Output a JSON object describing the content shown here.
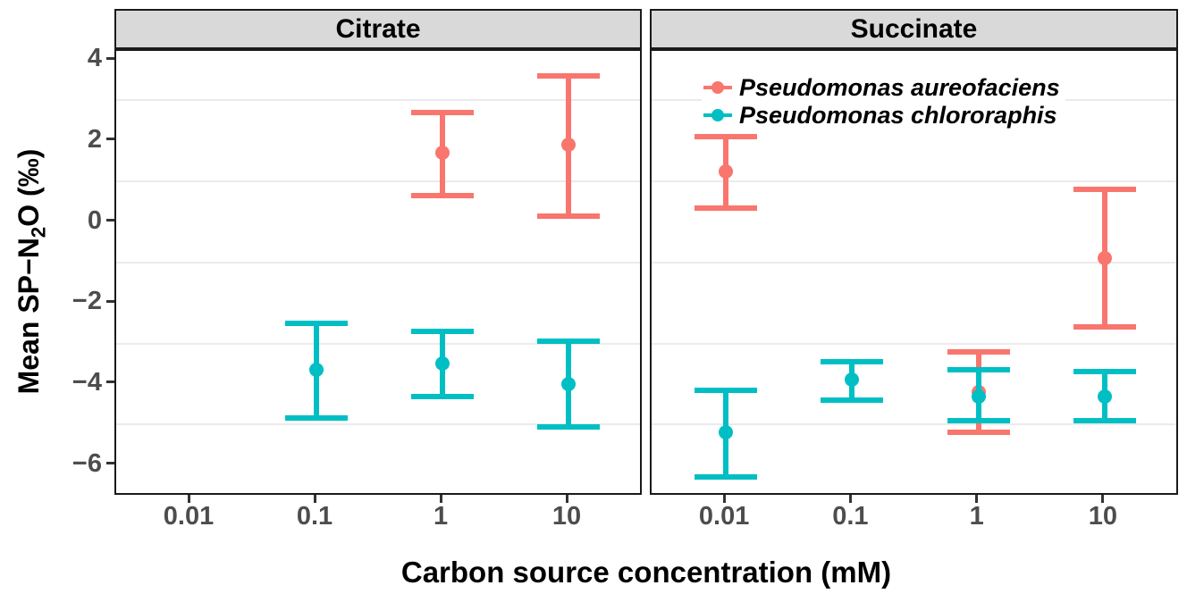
{
  "figure": {
    "xlabel": "Carbon source concentration (mM)",
    "ylabel_prefix": "Mean SP−N",
    "ylabel_sub": "2",
    "ylabel_suffix": "O (‰)"
  },
  "chart_data": {
    "type": "pointrange",
    "x_scale": "log10",
    "xlabel": "Carbon source concentration (mM)",
    "ylabel": "Mean SP−N₂O (‰)",
    "x_tick_labels": [
      "0.01",
      "0.1",
      "1",
      "10"
    ],
    "x_tick_values": [
      0.01,
      0.1,
      1,
      10
    ],
    "y_tick_labels": [
      "4",
      "2",
      "0",
      "−2",
      "−4",
      "−6"
    ],
    "y_tick_values": [
      4,
      2,
      0,
      -2,
      -4,
      -6
    ],
    "ylim": [
      -6.8,
      4.2
    ],
    "grid_minor_y": [
      3,
      1,
      -1,
      -3,
      -5
    ],
    "grid": "horizontal-minor-only",
    "legend": {
      "position": "inside-top-right-facet-succinate",
      "entries": [
        {
          "label": "Pseudomonas aureofaciens",
          "color": "#F8766D"
        },
        {
          "label": "Pseudomonas chlororaphis",
          "color": "#00BFC4"
        }
      ]
    },
    "facets": [
      {
        "label": "Citrate",
        "series": [
          {
            "name": "Pseudomonas aureofaciens",
            "color": "#F8766D",
            "points": [
              {
                "x": 1,
                "y": 1.7,
                "ymin": 0.65,
                "ymax": 2.7
              },
              {
                "x": 10,
                "y": 1.9,
                "ymin": 0.15,
                "ymax": 3.6
              }
            ]
          },
          {
            "name": "Pseudomonas chlororaphis",
            "color": "#00BFC4",
            "points": [
              {
                "x": 0.1,
                "y": -3.65,
                "ymin": -4.85,
                "ymax": -2.5
              },
              {
                "x": 1,
                "y": -3.5,
                "ymin": -4.3,
                "ymax": -2.7
              },
              {
                "x": 10,
                "y": -4.0,
                "ymin": -5.05,
                "ymax": -2.95
              }
            ]
          }
        ]
      },
      {
        "label": "Succinate",
        "series": [
          {
            "name": "Pseudomonas aureofaciens",
            "color": "#F8766D",
            "points": [
              {
                "x": 0.01,
                "y": 1.25,
                "ymin": 0.35,
                "ymax": 2.1
              },
              {
                "x": 1,
                "y": -4.2,
                "ymin": -5.2,
                "ymax": -3.2
              },
              {
                "x": 10,
                "y": -0.9,
                "ymin": -2.6,
                "ymax": 0.8
              }
            ]
          },
          {
            "name": "Pseudomonas chlororaphis",
            "color": "#00BFC4",
            "points": [
              {
                "x": 0.01,
                "y": -5.2,
                "ymin": -6.3,
                "ymax": -4.15
              },
              {
                "x": 0.1,
                "y": -3.9,
                "ymin": -4.4,
                "ymax": -3.45
              },
              {
                "x": 1,
                "y": -4.3,
                "ymin": -4.9,
                "ymax": -3.65
              },
              {
                "x": 10,
                "y": -4.3,
                "ymin": -4.9,
                "ymax": -3.7
              }
            ]
          }
        ]
      }
    ]
  }
}
